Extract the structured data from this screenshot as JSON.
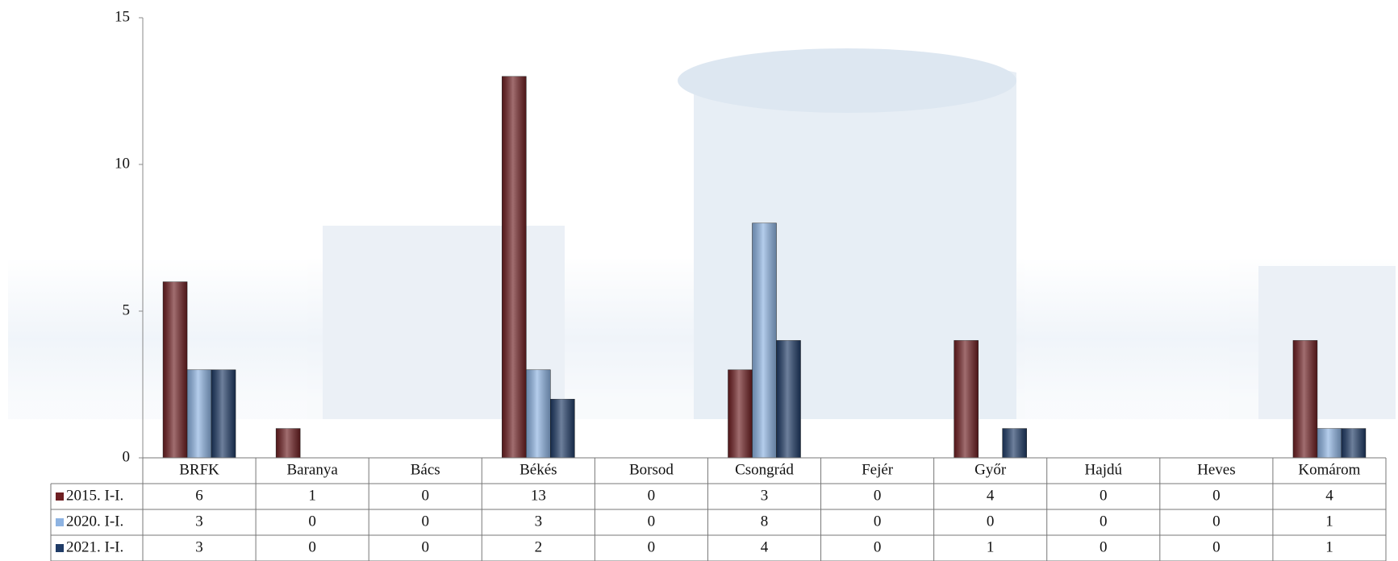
{
  "chart_data": {
    "type": "bar",
    "categories": [
      "BRFK",
      "Baranya",
      "Bács",
      "Békés",
      "Borsod",
      "Csongrád",
      "Fejér",
      "Győr",
      "Hajdú",
      "Heves",
      "Komárom"
    ],
    "series": [
      {
        "name": "2015. I-I.",
        "color": "#6e1f22",
        "values": [
          6,
          1,
          0,
          13,
          0,
          3,
          0,
          4,
          0,
          0,
          4
        ]
      },
      {
        "name": "2020. I-I.",
        "color": "#8db3e2",
        "values": [
          3,
          0,
          0,
          3,
          0,
          8,
          0,
          0,
          0,
          0,
          1
        ]
      },
      {
        "name": "2021. I-I.",
        "color": "#1f3b66",
        "values": [
          3,
          0,
          0,
          2,
          0,
          4,
          0,
          1,
          0,
          0,
          1
        ]
      }
    ],
    "ylim": [
      0,
      15
    ],
    "yticks": [
      0,
      5,
      10,
      15
    ],
    "grid": false
  }
}
